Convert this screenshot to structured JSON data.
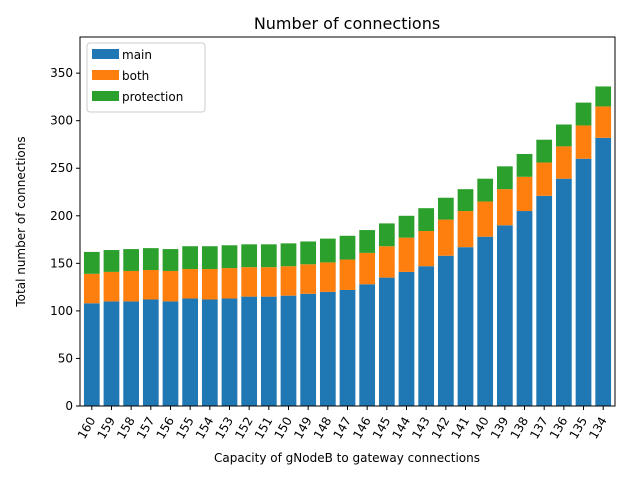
{
  "chart_data": {
    "type": "bar",
    "stacked": true,
    "title": "Number of connections",
    "xlabel": "Capacity of gNodeB to gateway connections",
    "ylabel": "Total number of connections",
    "ylim": [
      0,
      388
    ],
    "yticks": [
      0,
      50,
      100,
      150,
      200,
      250,
      300,
      350
    ],
    "grid": false,
    "legend_position": "upper-left",
    "categories": [
      "160",
      "159",
      "158",
      "157",
      "156",
      "155",
      "154",
      "153",
      "152",
      "151",
      "150",
      "149",
      "148",
      "147",
      "146",
      "145",
      "144",
      "143",
      "142",
      "141",
      "140",
      "139",
      "138",
      "137",
      "136",
      "135",
      "134"
    ],
    "series": [
      {
        "name": "main",
        "color": "#1f77b4",
        "values": [
          108,
          110,
          110,
          112,
          110,
          113,
          112,
          113,
          115,
          115,
          116,
          118,
          120,
          122,
          128,
          135,
          141,
          147,
          158,
          167,
          178,
          190,
          205,
          221,
          239,
          260,
          282
        ]
      },
      {
        "name": "both",
        "color": "#ff7f0e",
        "values": [
          31,
          31,
          32,
          31,
          32,
          31,
          32,
          32,
          31,
          31,
          31,
          31,
          31,
          32,
          33,
          33,
          36,
          37,
          38,
          38,
          37,
          38,
          36,
          35,
          34,
          35,
          33
        ]
      },
      {
        "name": "protection",
        "color": "#2ca02c",
        "values": [
          23,
          23,
          23,
          23,
          23,
          24,
          24,
          24,
          24,
          24,
          24,
          24,
          25,
          25,
          24,
          24,
          23,
          24,
          23,
          23,
          24,
          24,
          24,
          24,
          23,
          24,
          21
        ]
      }
    ]
  }
}
